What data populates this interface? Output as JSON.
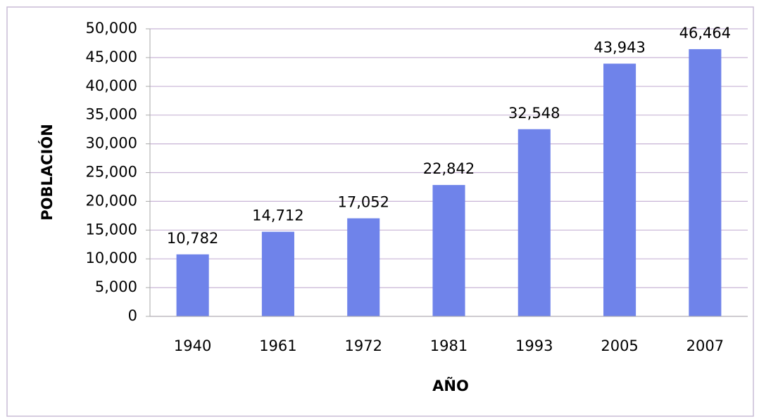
{
  "chart_data": {
    "type": "bar",
    "x_label": "AÑO",
    "y_label": "POBLACIÓN",
    "categories": [
      "1940",
      "1961",
      "1972",
      "1981",
      "1993",
      "2005",
      "2007"
    ],
    "values": [
      10782,
      14712,
      17052,
      22842,
      32548,
      43943,
      46464
    ],
    "value_labels": [
      "10,782",
      "14,712",
      "17,052",
      "22,842",
      "32,548",
      "43,943",
      "46,464"
    ],
    "color": "#6f83ea",
    "ylim": [
      0,
      50000
    ],
    "yticks": [
      0,
      {
        "value": 5000,
        "label": "5,000"
      },
      {
        "value": 10000,
        "label": "10,000"
      },
      {
        "value": 15000,
        "label": "15,000"
      },
      {
        "value": 20000,
        "label": "20,000"
      },
      {
        "value": 25000,
        "label": "25,000"
      },
      {
        "value": 30000,
        "label": "30,000"
      },
      {
        "value": 35000,
        "label": "35,000"
      },
      {
        "value": 40000,
        "label": "40,000"
      },
      {
        "value": 45000,
        "label": "45,000"
      },
      {
        "value": 50000,
        "label": "50,000"
      }
    ],
    "grid": true
  }
}
